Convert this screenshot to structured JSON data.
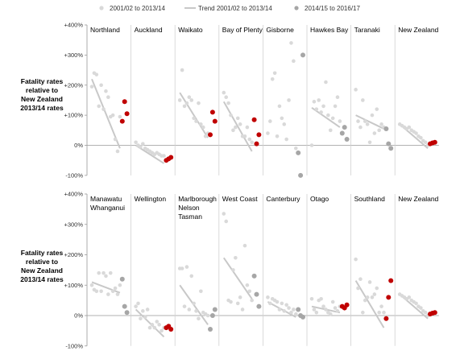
{
  "chart_data": {
    "type": "scatter",
    "legend": {
      "placement": "top",
      "entries": [
        {
          "label": "2001/02 to 2013/14",
          "kind": "point",
          "color": "#d9d9d9"
        },
        {
          "label": "Trend 2001/02 to 2013/14",
          "kind": "line",
          "color": "#c8c8c8"
        },
        {
          "label": "2014/15 to 2016/17",
          "kind": "point",
          "color": "#a6a6a6"
        }
      ]
    },
    "colors": {
      "historic": "#d9d9d9",
      "trend": "#c8c8c8",
      "recent_grey": "#a6a6a6",
      "recent_red": "#c00000"
    },
    "ylabel": "Fatality rates\nrelative to\nNew Zealand\n2013/14 rates",
    "yticks": [
      "+400%",
      "+300%",
      "+200%",
      "+100%",
      "0%",
      "-100%"
    ],
    "ytick_values": [
      400,
      300,
      200,
      100,
      0,
      -100
    ],
    "ylim": [
      -100,
      400
    ],
    "grid": false,
    "rows": [
      {
        "regions": [
          {
            "name": "Northland",
            "historic": [
              195,
              240,
              235,
              130,
              200,
              120,
              180,
              160,
              95,
              100,
              20,
              -20,
              95
            ],
            "trend": [
              220,
              -10
            ],
            "recent": [
              80,
              145,
              105
            ],
            "recent_color": "red"
          },
          {
            "name": "Auckland",
            "historic": [
              10,
              0,
              -5,
              5,
              -10,
              -15,
              -20,
              -25,
              -30,
              -25,
              -30,
              -35,
              -35
            ],
            "trend": [
              0,
              -60
            ],
            "recent": [
              -50,
              -45,
              -40
            ],
            "recent_color": "red"
          },
          {
            "name": "Waikato",
            "historic": [
              150,
              250,
              130,
              140,
              160,
              150,
              90,
              80,
              140,
              70,
              60,
              30,
              40
            ],
            "trend": [
              175,
              25
            ],
            "recent": [
              35,
              110,
              80
            ],
            "recent_color": "red"
          },
          {
            "name": "Bay of Plenty",
            "historic": [
              175,
              160,
              140,
              100,
              50,
              60,
              90,
              70,
              30,
              30,
              60,
              20,
              10
            ],
            "trend": [
              145,
              -20
            ],
            "recent": [
              85,
              5,
              35
            ],
            "recent_color": "red"
          },
          {
            "name": "Gisborne",
            "historic": [
              40,
              80,
              220,
              240,
              30,
              130,
              90,
              70,
              20,
              150,
              340,
              280,
              -10
            ],
            "trend": [],
            "recent": [
              -25,
              -100,
              300
            ],
            "recent_color": "grey"
          },
          {
            "name": "Hawkes Bay",
            "historic": [
              0,
              145,
              120,
              150,
              110,
              130,
              210,
              100,
              50,
              90,
              130,
              160,
              80
            ],
            "trend": [
              125,
              60
            ],
            "recent": [
              40,
              60,
              20
            ],
            "recent_color": "grey"
          },
          {
            "name": "Taranaki",
            "historic": [
              185,
              80,
              60,
              150,
              80,
              70,
              10,
              100,
              40,
              120,
              50,
              70,
              60
            ],
            "trend": [
              100,
              55
            ],
            "recent": [
              55,
              5,
              -10
            ],
            "recent_color": "grey"
          },
          {
            "name": "New Zealand",
            "historic": [
              70,
              65,
              60,
              55,
              60,
              50,
              45,
              40,
              30,
              25,
              15,
              10,
              0
            ],
            "trend": [
              70,
              -10
            ],
            "recent": [
              5,
              8,
              10
            ],
            "recent_color": "red"
          }
        ]
      },
      {
        "regions": [
          {
            "name": "Manawatu\nWhanganui",
            "historic": [
              100,
              85,
              80,
              140,
              80,
              140,
              130,
              70,
              140,
              80,
              90,
              70,
              100
            ],
            "trend": [
              110,
              75
            ],
            "recent": [
              120,
              30,
              10
            ],
            "recent_color": "grey"
          },
          {
            "name": "Wellington",
            "historic": [
              30,
              40,
              -10,
              15,
              -5,
              20,
              -40,
              -30,
              -40,
              -20,
              -30,
              -50,
              -40
            ],
            "trend": [
              20,
              -70
            ],
            "recent": [
              -40,
              -35,
              -45
            ],
            "recent_color": "red"
          },
          {
            "name": "Marlborough\nNelson\nTasman",
            "historic": [
              155,
              155,
              30,
              160,
              20,
              130,
              40,
              15,
              -10,
              80,
              10,
              5,
              0
            ],
            "trend": [
              100,
              -30
            ],
            "recent": [
              -45,
              0,
              20
            ],
            "recent_color": "grey"
          },
          {
            "name": "West Coast",
            "historic": [
              335,
              310,
              50,
              45,
              150,
              190,
              40,
              60,
              20,
              230,
              100,
              80,
              50
            ],
            "trend": [
              190,
              55
            ],
            "recent": [
              130,
              70,
              30
            ],
            "recent_color": "grey"
          },
          {
            "name": "Canterbury",
            "historic": [
              60,
              40,
              55,
              50,
              45,
              20,
              40,
              15,
              35,
              25,
              10,
              20,
              5
            ],
            "trend": [
              45,
              -5
            ],
            "recent": [
              20,
              0,
              -5
            ],
            "recent_color": "grey"
          },
          {
            "name": "Otago",
            "historic": [
              55,
              20,
              10,
              50,
              55,
              30,
              20,
              10,
              5,
              45,
              25,
              15,
              30
            ],
            "trend": [
              30,
              10
            ],
            "recent": [
              30,
              25,
              35
            ],
            "recent_color": "red"
          },
          {
            "name": "Southland",
            "historic": [
              185,
              90,
              120,
              10,
              50,
              60,
              110,
              60,
              70,
              90,
              10,
              30,
              10
            ],
            "trend": [
              115,
              -40
            ],
            "recent": [
              -10,
              60,
              115
            ],
            "recent_color": "red"
          },
          {
            "name": "New Zealand",
            "historic": [
              70,
              65,
              60,
              55,
              60,
              50,
              45,
              40,
              30,
              25,
              15,
              10,
              0
            ],
            "trend": [
              70,
              -10
            ],
            "recent": [
              5,
              8,
              10
            ],
            "recent_color": "red"
          }
        ]
      }
    ]
  }
}
